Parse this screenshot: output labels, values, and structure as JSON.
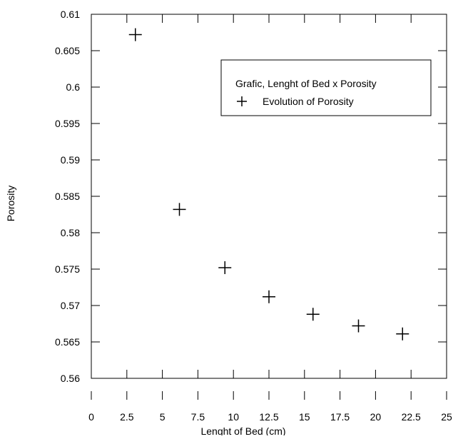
{
  "chart_data": {
    "type": "scatter",
    "xlabel": "Lenght of Bed (cm)",
    "ylabel": "Porosity",
    "xlim": [
      0,
      25
    ],
    "ylim": [
      0.56,
      0.61
    ],
    "x_ticks": [
      "0",
      "2.5",
      "5",
      "7.5",
      "10",
      "12.5",
      "15",
      "17.5",
      "20",
      "22.5",
      "25"
    ],
    "y_ticks": [
      "0.56",
      "0.565",
      "0.57",
      "0.575",
      "0.58",
      "0.585",
      "0.59",
      "0.595",
      "0.6",
      "0.605",
      "0.61"
    ],
    "grid": false,
    "legend": {
      "placement": "top-right",
      "title": "Grafic, Lenght of Bed x Porosity",
      "entries": [
        "Evolution of Porosity"
      ]
    },
    "series": [
      {
        "name": "Evolution of Porosity",
        "marker": "plus",
        "x": [
          3.1,
          6.2,
          9.4,
          12.5,
          15.6,
          18.8,
          21.9
        ],
        "y": [
          0.6072,
          0.5832,
          0.5752,
          0.5712,
          0.5688,
          0.5672,
          0.5661
        ]
      }
    ],
    "colors": {
      "axes": "#000000",
      "marker": "#000000",
      "background": "#ffffff"
    }
  }
}
